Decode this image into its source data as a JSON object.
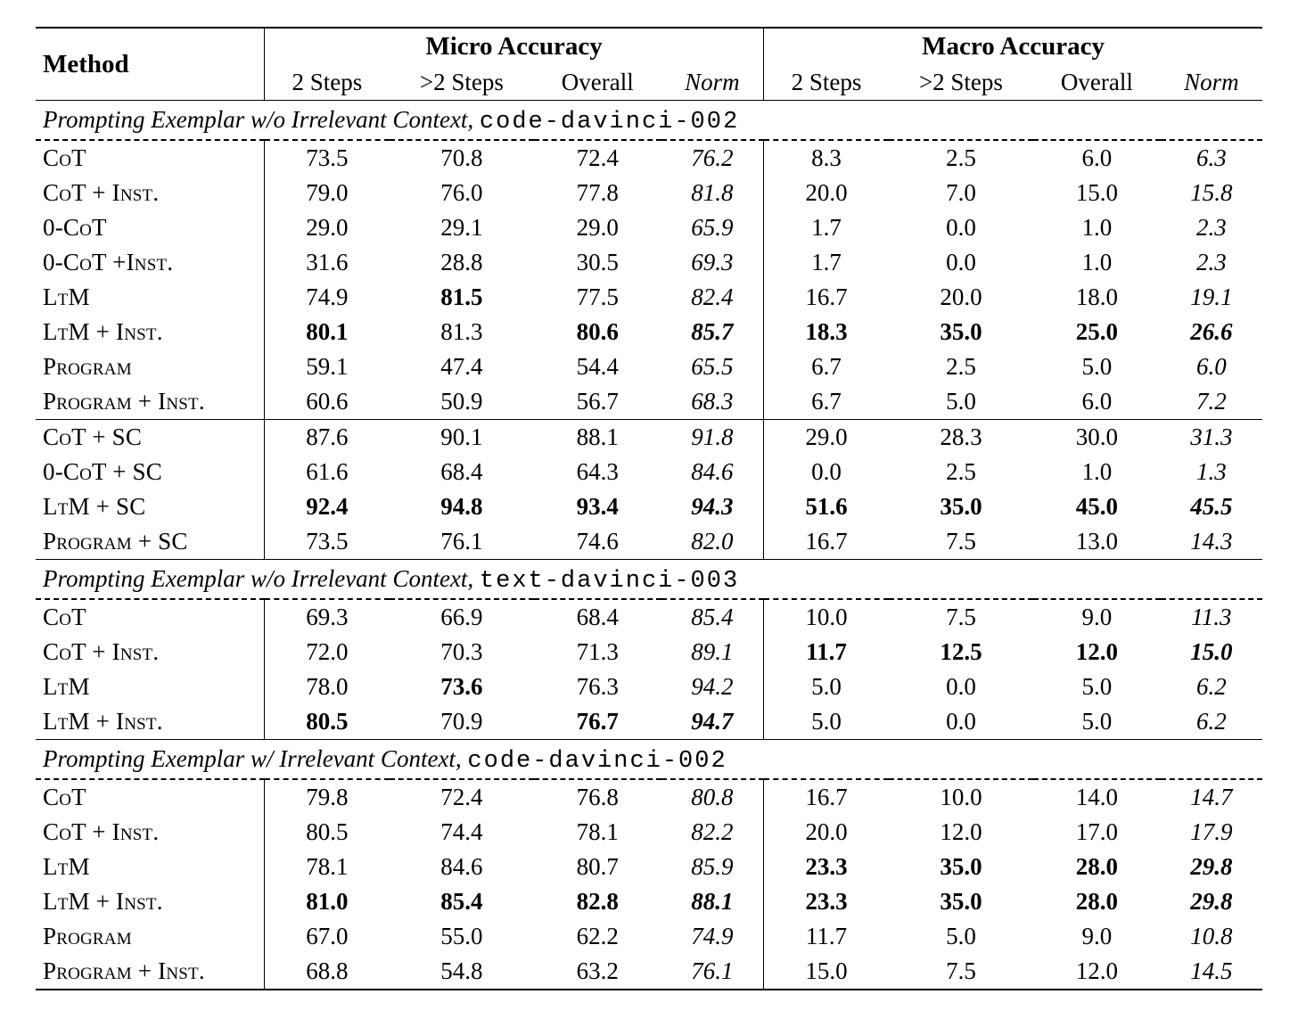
{
  "header": {
    "method": "Method",
    "micro": "Micro Accuracy",
    "macro": "Macro Accuracy",
    "sub": {
      "two": "2 Steps",
      "gt2": ">2 Steps",
      "overall": "Overall",
      "norm": "Norm"
    }
  },
  "sections": [
    {
      "title_prefix": "Prompting Exemplar w/o Irrelevant Context",
      "title_code": "code-davinci-002",
      "blocks": [
        {
          "rows": [
            {
              "name": "CoT",
              "micro": {
                "two": "73.5",
                "gt2": "70.8",
                "overall": "72.4",
                "norm": "76.2"
              },
              "macro": {
                "two": "8.3",
                "gt2": "2.5",
                "overall": "6.0",
                "norm": "6.3"
              }
            },
            {
              "name": "CoT + Inst.",
              "micro": {
                "two": "79.0",
                "gt2": "76.0",
                "overall": "77.8",
                "norm": "81.8"
              },
              "macro": {
                "two": "20.0",
                "gt2": "7.0",
                "overall": "15.0",
                "norm": "15.8"
              }
            },
            {
              "name": "0-CoT",
              "micro": {
                "two": "29.0",
                "gt2": "29.1",
                "overall": "29.0",
                "norm": "65.9"
              },
              "macro": {
                "two": "1.7",
                "gt2": "0.0",
                "overall": "1.0",
                "norm": "2.3"
              }
            },
            {
              "name": "0-CoT +Inst.",
              "micro": {
                "two": "31.6",
                "gt2": "28.8",
                "overall": "30.5",
                "norm": "69.3"
              },
              "macro": {
                "two": "1.7",
                "gt2": "0.0",
                "overall": "1.0",
                "norm": "2.3"
              }
            },
            {
              "name": "LtM",
              "micro": {
                "two": "74.9",
                "gt2": "81.5",
                "gt2_bold": true,
                "overall": "77.5",
                "norm": "82.4"
              },
              "macro": {
                "two": "16.7",
                "gt2": "20.0",
                "overall": "18.0",
                "norm": "19.1"
              }
            },
            {
              "name": "LtM + Inst.",
              "micro": {
                "two": "80.1",
                "two_bold": true,
                "gt2": "81.3",
                "overall": "80.6",
                "overall_bold": true,
                "norm": "85.7",
                "norm_bold": true
              },
              "macro": {
                "two": "18.3",
                "two_bold": true,
                "gt2": "35.0",
                "gt2_bold": true,
                "overall": "25.0",
                "overall_bold": true,
                "norm": "26.6",
                "norm_bold": true
              }
            },
            {
              "name": "Program",
              "micro": {
                "two": "59.1",
                "gt2": "47.4",
                "overall": "54.4",
                "norm": "65.5"
              },
              "macro": {
                "two": "6.7",
                "gt2": "2.5",
                "overall": "5.0",
                "norm": "6.0"
              }
            },
            {
              "name": "Program + Inst.",
              "micro": {
                "two": "60.6",
                "gt2": "50.9",
                "overall": "56.7",
                "norm": "68.3"
              },
              "macro": {
                "two": "6.7",
                "gt2": "5.0",
                "overall": "6.0",
                "norm": "7.2"
              }
            }
          ]
        },
        {
          "rows": [
            {
              "name": "CoT + SC",
              "micro": {
                "two": "87.6",
                "gt2": "90.1",
                "overall": "88.1",
                "norm": "91.8"
              },
              "macro": {
                "two": "29.0",
                "gt2": "28.3",
                "overall": "30.0",
                "norm": "31.3"
              }
            },
            {
              "name": "0-CoT + SC",
              "micro": {
                "two": "61.6",
                "gt2": "68.4",
                "overall": "64.3",
                "norm": "84.6"
              },
              "macro": {
                "two": "0.0",
                "gt2": "2.5",
                "overall": "1.0",
                "norm": "1.3"
              }
            },
            {
              "name": "LtM + SC",
              "micro": {
                "two": "92.4",
                "two_bold": true,
                "gt2": "94.8",
                "gt2_bold": true,
                "overall": "93.4",
                "overall_bold": true,
                "norm": "94.3",
                "norm_bold": true
              },
              "macro": {
                "two": "51.6",
                "two_bold": true,
                "gt2": "35.0",
                "gt2_bold": true,
                "overall": "45.0",
                "overall_bold": true,
                "norm": "45.5",
                "norm_bold": true
              }
            },
            {
              "name": "Program + SC",
              "micro": {
                "two": "73.5",
                "gt2": "76.1",
                "overall": "74.6",
                "norm": "82.0"
              },
              "macro": {
                "two": "16.7",
                "gt2": "7.5",
                "overall": "13.0",
                "norm": "14.3"
              }
            }
          ]
        }
      ]
    },
    {
      "title_prefix": "Prompting Exemplar w/o Irrelevant Context",
      "title_code": "text-davinci-003",
      "blocks": [
        {
          "rows": [
            {
              "name": "CoT",
              "micro": {
                "two": "69.3",
                "gt2": "66.9",
                "overall": "68.4",
                "norm": "85.4"
              },
              "macro": {
                "two": "10.0",
                "gt2": "7.5",
                "overall": "9.0",
                "norm": "11.3"
              }
            },
            {
              "name": "CoT + Inst.",
              "micro": {
                "two": "72.0",
                "gt2": "70.3",
                "overall": "71.3",
                "norm": "89.1"
              },
              "macro": {
                "two": "11.7",
                "two_bold": true,
                "gt2": "12.5",
                "gt2_bold": true,
                "overall": "12.0",
                "overall_bold": true,
                "norm": "15.0",
                "norm_bold": true
              }
            },
            {
              "name": "LtM",
              "micro": {
                "two": "78.0",
                "gt2": "73.6",
                "gt2_bold": true,
                "overall": "76.3",
                "norm": "94.2"
              },
              "macro": {
                "two": "5.0",
                "gt2": "0.0",
                "overall": "5.0",
                "norm": "6.2"
              }
            },
            {
              "name": "LtM + Inst.",
              "micro": {
                "two": "80.5",
                "two_bold": true,
                "gt2": "70.9",
                "overall": "76.7",
                "overall_bold": true,
                "norm": "94.7",
                "norm_bold": true
              },
              "macro": {
                "two": "5.0",
                "gt2": "0.0",
                "overall": "5.0",
                "norm": "6.2"
              }
            }
          ]
        }
      ]
    },
    {
      "title_prefix": "Prompting Exemplar w/ Irrelevant Context",
      "title_code": "code-davinci-002",
      "blocks": [
        {
          "rows": [
            {
              "name": "CoT",
              "micro": {
                "two": "79.8",
                "gt2": "72.4",
                "overall": "76.8",
                "norm": "80.8"
              },
              "macro": {
                "two": "16.7",
                "gt2": "10.0",
                "overall": "14.0",
                "norm": "14.7"
              }
            },
            {
              "name": "CoT + Inst.",
              "micro": {
                "two": "80.5",
                "gt2": "74.4",
                "overall": "78.1",
                "norm": "82.2"
              },
              "macro": {
                "two": "20.0",
                "gt2": "12.0",
                "overall": "17.0",
                "norm": "17.9"
              }
            },
            {
              "name": "LtM",
              "micro": {
                "two": "78.1",
                "gt2": "84.6",
                "overall": "80.7",
                "norm": "85.9"
              },
              "macro": {
                "two": "23.3",
                "two_bold": true,
                "gt2": "35.0",
                "gt2_bold": true,
                "overall": "28.0",
                "overall_bold": true,
                "norm": "29.8",
                "norm_bold": true
              }
            },
            {
              "name": "LtM + Inst.",
              "micro": {
                "two": "81.0",
                "two_bold": true,
                "gt2": "85.4",
                "gt2_bold": true,
                "overall": "82.8",
                "overall_bold": true,
                "norm": "88.1",
                "norm_bold": true
              },
              "macro": {
                "two": "23.3",
                "two_bold": true,
                "gt2": "35.0",
                "gt2_bold": true,
                "overall": "28.0",
                "overall_bold": true,
                "norm": "29.8",
                "norm_bold": true
              }
            },
            {
              "name": "Program",
              "micro": {
                "two": "67.0",
                "gt2": "55.0",
                "overall": "62.2",
                "norm": "74.9"
              },
              "macro": {
                "two": "11.7",
                "gt2": "5.0",
                "overall": "9.0",
                "norm": "10.8"
              }
            },
            {
              "name": "Program + Inst.",
              "micro": {
                "two": "68.8",
                "gt2": "54.8",
                "overall": "63.2",
                "norm": "76.1"
              },
              "macro": {
                "two": "15.0",
                "gt2": "7.5",
                "overall": "12.0",
                "norm": "14.5"
              }
            }
          ]
        }
      ]
    }
  ]
}
